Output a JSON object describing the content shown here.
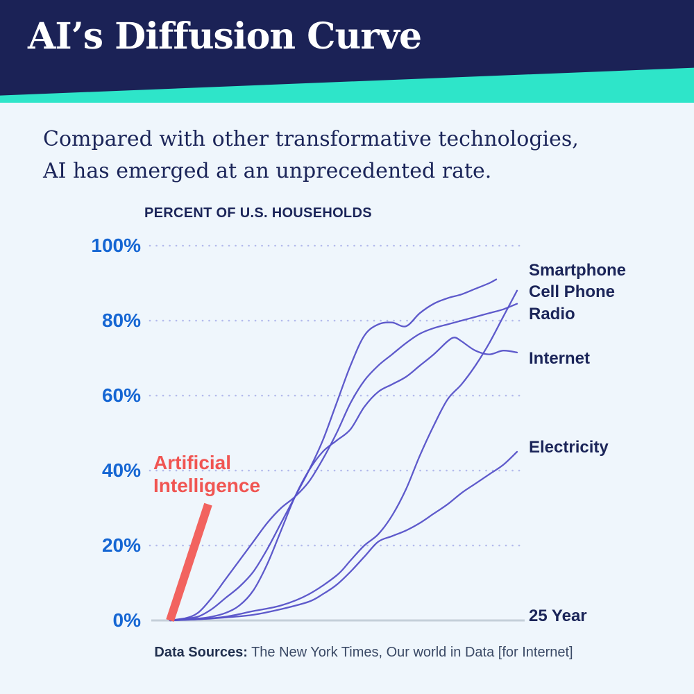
{
  "header": {
    "title": "AI’s Diffusion Curve"
  },
  "subtitle": {
    "line1": "Compared with other transformative technologies,",
    "line2": "AI has emerged at an unprecedented rate."
  },
  "footer": {
    "label": "Data Sources:",
    "text": " The New York Times, Our world in Data [for Internet]"
  },
  "colors": {
    "header_navy": "#1b2256",
    "accent_teal": "#2ee5c9",
    "page_bg": "#eff6fc",
    "axis_label_blue": "#1566d3",
    "text_navy": "#1b2559",
    "curve_indigo": "#5551c8",
    "ai_red": "#f05552",
    "grid_dots": "#b3baec",
    "baseline_gray": "#c5cfd9"
  },
  "chart_data": {
    "type": "line",
    "title": "PERCENT OF U.S. HOUSEHOLDS",
    "x_axis": {
      "label": "25 Year",
      "min": 0,
      "max": 25
    },
    "y_axis": {
      "label": "PERCENT OF U.S. HOUSEHOLDS",
      "min": 0,
      "max": 100,
      "ticks": [
        "100%",
        "80%",
        "60%",
        "40%",
        "20%",
        "0%"
      ]
    },
    "grid": "horizontal-dotted",
    "legend_position": "right-of-line-ends",
    "series": [
      {
        "name": "Smartphone",
        "color": "#5551c8",
        "points": [
          [
            0,
            0
          ],
          [
            1,
            0.5
          ],
          [
            2,
            1
          ],
          [
            3,
            3
          ],
          [
            4,
            6
          ],
          [
            5,
            9
          ],
          [
            6,
            13
          ],
          [
            7,
            19
          ],
          [
            8,
            26
          ],
          [
            9,
            33
          ],
          [
            10,
            40
          ],
          [
            11,
            48
          ],
          [
            12,
            58
          ],
          [
            13,
            68
          ],
          [
            14,
            76
          ],
          [
            15,
            79
          ],
          [
            16,
            79.5
          ],
          [
            17,
            78.5
          ],
          [
            18,
            82
          ],
          [
            19,
            84.5
          ],
          [
            20,
            86
          ],
          [
            21,
            87
          ],
          [
            22,
            88.5
          ],
          [
            23,
            90
          ],
          [
            23.5,
            91
          ]
        ]
      },
      {
        "name": "Cell Phone",
        "color": "#5551c8",
        "points": [
          [
            0,
            0
          ],
          [
            2,
            0.3
          ],
          [
            4,
            1
          ],
          [
            6,
            2.5
          ],
          [
            8,
            4
          ],
          [
            10,
            7
          ],
          [
            12,
            12
          ],
          [
            13,
            16
          ],
          [
            14,
            20
          ],
          [
            15,
            23
          ],
          [
            16,
            28
          ],
          [
            17,
            35
          ],
          [
            18,
            44
          ],
          [
            19,
            52
          ],
          [
            20,
            59
          ],
          [
            21,
            63
          ],
          [
            22,
            68
          ],
          [
            23,
            74
          ],
          [
            24,
            81
          ],
          [
            25,
            88
          ]
        ]
      },
      {
        "name": "Radio",
        "color": "#5551c8",
        "points": [
          [
            0,
            0
          ],
          [
            1,
            0.5
          ],
          [
            2,
            2
          ],
          [
            3,
            6
          ],
          [
            4,
            11
          ],
          [
            5,
            16
          ],
          [
            6,
            21
          ],
          [
            7,
            26
          ],
          [
            8,
            30
          ],
          [
            9,
            33
          ],
          [
            10,
            37
          ],
          [
            11,
            43
          ],
          [
            12,
            50
          ],
          [
            13,
            58
          ],
          [
            14,
            64
          ],
          [
            15,
            68
          ],
          [
            16,
            71
          ],
          [
            17,
            74
          ],
          [
            18,
            76.5
          ],
          [
            19,
            78
          ],
          [
            20,
            79
          ],
          [
            21,
            80
          ],
          [
            22,
            81
          ],
          [
            23,
            82
          ],
          [
            24,
            83
          ],
          [
            25,
            84.5
          ]
        ]
      },
      {
        "name": "Internet",
        "color": "#5551c8",
        "points": [
          [
            0,
            0
          ],
          [
            2,
            0.5
          ],
          [
            3,
            1
          ],
          [
            4,
            2
          ],
          [
            5,
            4
          ],
          [
            6,
            8
          ],
          [
            7,
            15
          ],
          [
            8,
            24
          ],
          [
            9,
            33
          ],
          [
            10,
            40
          ],
          [
            11,
            45
          ],
          [
            12,
            48
          ],
          [
            13,
            51
          ],
          [
            14,
            57
          ],
          [
            15,
            61
          ],
          [
            16,
            63
          ],
          [
            17,
            65
          ],
          [
            18,
            68
          ],
          [
            19,
            71
          ],
          [
            20,
            74.5
          ],
          [
            20.5,
            75.5
          ],
          [
            21,
            74.5
          ],
          [
            22,
            72
          ],
          [
            23,
            71
          ],
          [
            24,
            72
          ],
          [
            25,
            71.5
          ]
        ]
      },
      {
        "name": "Electricity",
        "color": "#5551c8",
        "points": [
          [
            0,
            0
          ],
          [
            2,
            0.3
          ],
          [
            4,
            0.8
          ],
          [
            6,
            1.5
          ],
          [
            8,
            3
          ],
          [
            10,
            5
          ],
          [
            11,
            7
          ],
          [
            12,
            9.5
          ],
          [
            13,
            13
          ],
          [
            14,
            17
          ],
          [
            15,
            21
          ],
          [
            16,
            22.5
          ],
          [
            17,
            24
          ],
          [
            18,
            26
          ],
          [
            19,
            28.5
          ],
          [
            20,
            31
          ],
          [
            21,
            34
          ],
          [
            22,
            36.5
          ],
          [
            23,
            39
          ],
          [
            24,
            41.5
          ],
          [
            25,
            45
          ]
        ]
      }
    ],
    "ai_line": {
      "name": "Artificial Intelligence",
      "label_lines": [
        "Artificial",
        "Intelligence"
      ],
      "color": "#f2635f",
      "points": [
        [
          0,
          0
        ],
        [
          2.75,
          31
        ]
      ]
    }
  }
}
